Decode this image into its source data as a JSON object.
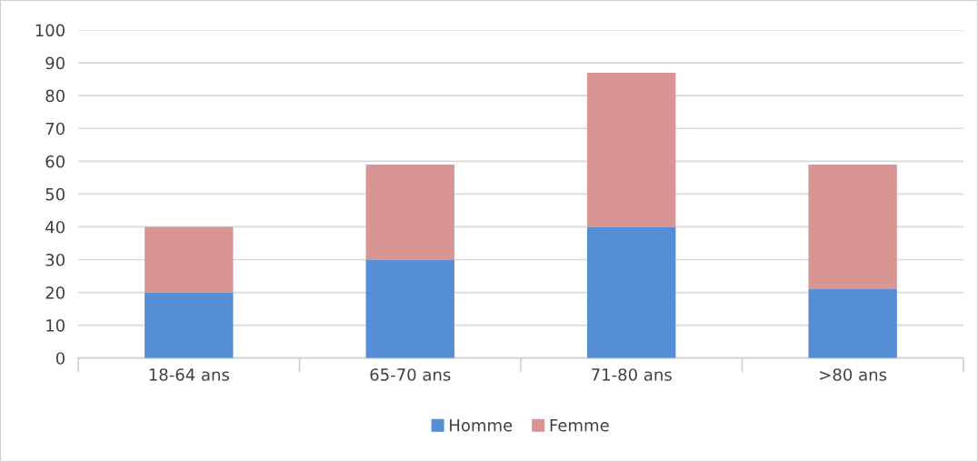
{
  "chart_data": {
    "type": "bar",
    "stacked": true,
    "categories": [
      "18-64 ans",
      "65-70 ans",
      "71-80 ans",
      ">80 ans"
    ],
    "series": [
      {
        "name": "Homme",
        "color": "#558ed5",
        "values": [
          20,
          30,
          40,
          21
        ]
      },
      {
        "name": "Femme",
        "color": "#d99594",
        "values": [
          20,
          29,
          47,
          38
        ]
      }
    ],
    "ylim": [
      0,
      100
    ],
    "yticks": [
      0,
      10,
      20,
      30,
      40,
      50,
      60,
      70,
      80,
      90,
      100
    ],
    "grid": "y",
    "legend": "bottom"
  }
}
